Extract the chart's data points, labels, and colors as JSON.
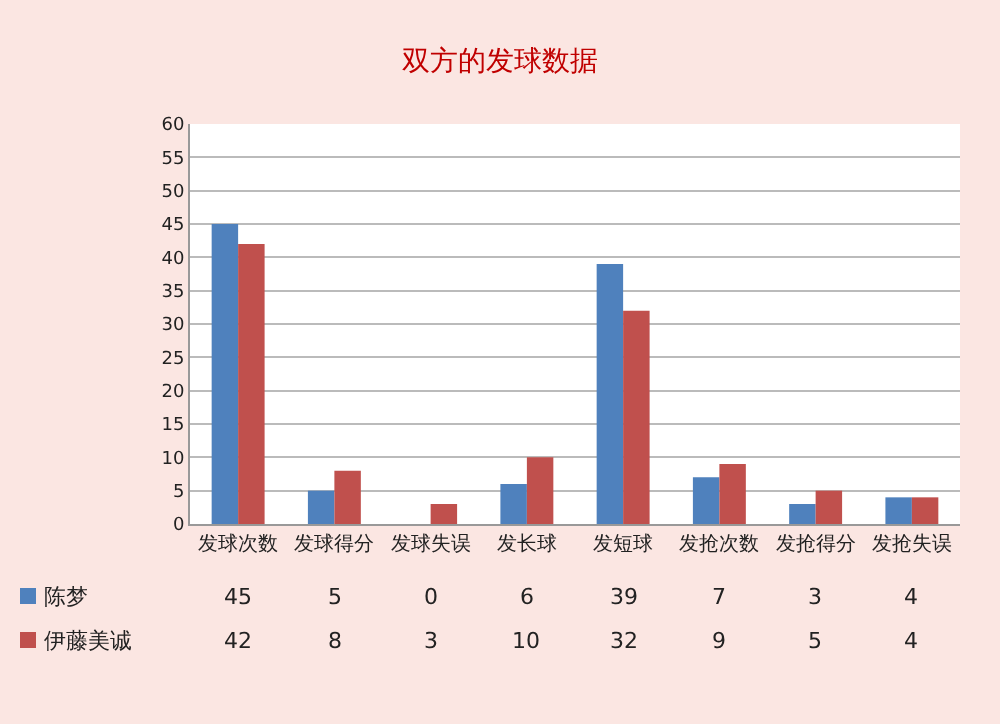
{
  "chart_data": {
    "type": "bar",
    "title": "双方的发球数据",
    "categories": [
      "发球次数",
      "发球得分",
      "发球失误",
      "发长球",
      "发短球",
      "发抢次数",
      "发抢得分",
      "发抢失误"
    ],
    "series": [
      {
        "name": "陈梦",
        "color": "#4f81bd",
        "values": [
          45,
          5,
          0,
          6,
          39,
          7,
          3,
          4
        ]
      },
      {
        "name": "伊藤美诚",
        "color": "#c0504d",
        "values": [
          42,
          8,
          3,
          10,
          32,
          9,
          5,
          4
        ]
      }
    ],
    "ylim": [
      0,
      60
    ],
    "yticks": [
      0,
      5,
      10,
      15,
      20,
      25,
      30,
      35,
      40,
      45,
      50,
      55,
      60
    ],
    "grid": "y",
    "legend": "bottom left",
    "data_labels": true
  }
}
